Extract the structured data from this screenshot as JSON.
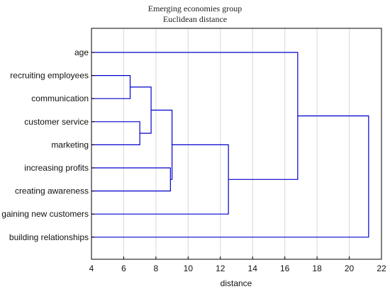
{
  "chart_data": {
    "type": "dendrogram",
    "title": "Emerging economies group",
    "subtitle": "Euclidean distance",
    "xlabel": "distance",
    "xlim": [
      4,
      22
    ],
    "xticks": [
      4,
      6,
      8,
      10,
      12,
      14,
      16,
      18,
      20,
      22
    ],
    "grid": true,
    "line_color": "#0000cc",
    "grid_color": "#d8d8d8",
    "leaves": [
      "age",
      "recruiting employees",
      "communication",
      "customer service",
      "marketing",
      "increasing profits",
      "creating awareness",
      "gaining new customers",
      "building relationships"
    ],
    "merges": [
      {
        "id": "m1",
        "left": "recruiting employees",
        "right": "communication",
        "distance": 6.4
      },
      {
        "id": "m2",
        "left": "customer service",
        "right": "marketing",
        "distance": 7.0
      },
      {
        "id": "m3",
        "left": "m1",
        "right": "m2",
        "distance": 7.7
      },
      {
        "id": "m4",
        "left": "increasing profits",
        "right": "creating awareness",
        "distance": 8.9
      },
      {
        "id": "m5",
        "left": "m3",
        "right": "m4",
        "distance": 9.0
      },
      {
        "id": "m6",
        "left": "m5",
        "right": "gaining new customers",
        "distance": 12.5
      },
      {
        "id": "m7",
        "left": "age",
        "right": "m6",
        "distance": 16.8
      },
      {
        "id": "m8",
        "left": "m7",
        "right": "building relationships",
        "distance": 21.2
      }
    ]
  }
}
